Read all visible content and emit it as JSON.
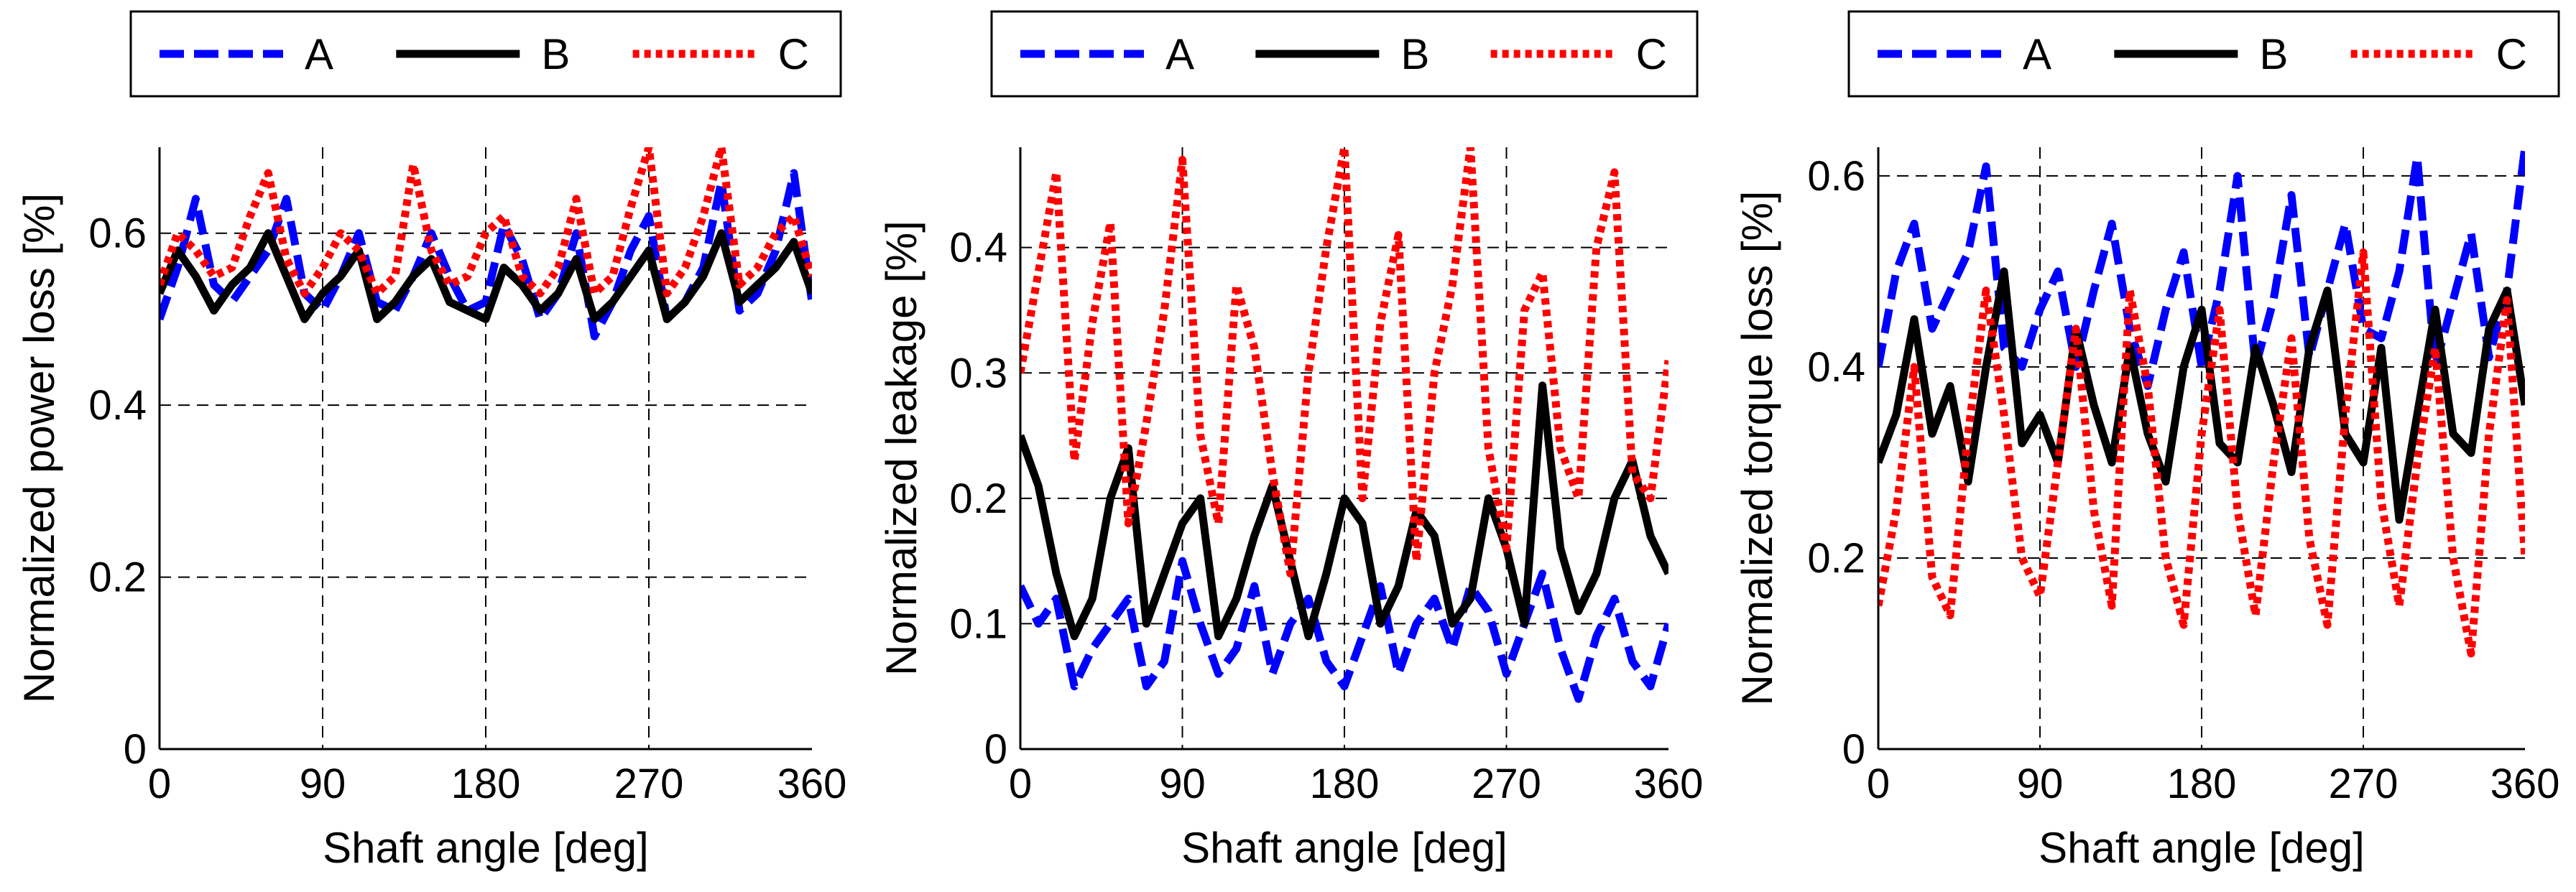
{
  "colors": {
    "A": "#0000ff",
    "B": "#000000",
    "C": "#ff0000",
    "grid": "#000000",
    "background": "#ffffff"
  },
  "chart_data": [
    {
      "type": "line",
      "title": "",
      "xlabel": "Shaft angle [deg]",
      "ylabel": "Normalized power loss [%]",
      "xlim": [
        0,
        360
      ],
      "ylim": [
        0,
        0.7
      ],
      "xticks": [
        0,
        90,
        180,
        270,
        360
      ],
      "xtick_labels": [
        "0",
        "90",
        "180",
        "270",
        "360"
      ],
      "yticks": [
        0,
        0.2,
        0.4,
        0.6
      ],
      "ytick_labels": [
        "0",
        "0.2",
        "0.4",
        "0.6"
      ],
      "grid": true,
      "legend_position": "top",
      "x": [
        0,
        10,
        20,
        30,
        40,
        50,
        60,
        70,
        80,
        90,
        100,
        110,
        120,
        130,
        140,
        150,
        160,
        170,
        180,
        190,
        200,
        210,
        220,
        230,
        240,
        250,
        260,
        270,
        280,
        290,
        300,
        310,
        320,
        330,
        340,
        350,
        360
      ],
      "series": [
        {
          "name": "A",
          "style": "dashed",
          "values": [
            0.5,
            0.56,
            0.64,
            0.54,
            0.52,
            0.55,
            0.58,
            0.64,
            0.53,
            0.51,
            0.55,
            0.6,
            0.52,
            0.51,
            0.55,
            0.6,
            0.55,
            0.51,
            0.52,
            0.61,
            0.57,
            0.5,
            0.53,
            0.6,
            0.48,
            0.52,
            0.58,
            0.62,
            0.5,
            0.52,
            0.56,
            0.66,
            0.51,
            0.53,
            0.58,
            0.67,
            0.52
          ]
        },
        {
          "name": "B",
          "style": "solid",
          "values": [
            0.53,
            0.58,
            0.55,
            0.51,
            0.54,
            0.56,
            0.6,
            0.55,
            0.5,
            0.53,
            0.55,
            0.58,
            0.5,
            0.52,
            0.55,
            0.57,
            0.52,
            0.51,
            0.5,
            0.56,
            0.54,
            0.51,
            0.53,
            0.57,
            0.5,
            0.52,
            0.55,
            0.58,
            0.5,
            0.52,
            0.55,
            0.6,
            0.52,
            0.54,
            0.56,
            0.59,
            0.53
          ]
        },
        {
          "name": "C",
          "style": "dotted",
          "values": [
            0.54,
            0.6,
            0.58,
            0.55,
            0.56,
            0.62,
            0.67,
            0.57,
            0.53,
            0.56,
            0.6,
            0.58,
            0.53,
            0.55,
            0.68,
            0.58,
            0.54,
            0.55,
            0.6,
            0.62,
            0.55,
            0.53,
            0.56,
            0.64,
            0.53,
            0.55,
            0.63,
            0.7,
            0.53,
            0.56,
            0.62,
            0.7,
            0.54,
            0.56,
            0.6,
            0.62,
            0.55
          ]
        }
      ]
    },
    {
      "type": "line",
      "title": "",
      "xlabel": "Shaft angle [deg]",
      "ylabel": "Normalized leakage [%]",
      "xlim": [
        0,
        360
      ],
      "ylim": [
        0,
        0.48
      ],
      "xticks": [
        0,
        90,
        180,
        270,
        360
      ],
      "xtick_labels": [
        "0",
        "90",
        "180",
        "270",
        "360"
      ],
      "yticks": [
        0,
        0.1,
        0.2,
        0.3,
        0.4
      ],
      "ytick_labels": [
        "0",
        "0.1",
        "0.2",
        "0.3",
        "0.4"
      ],
      "grid": true,
      "legend_position": "top",
      "x": [
        0,
        10,
        20,
        30,
        40,
        50,
        60,
        70,
        80,
        90,
        100,
        110,
        120,
        130,
        140,
        150,
        160,
        170,
        180,
        190,
        200,
        210,
        220,
        230,
        240,
        250,
        260,
        270,
        280,
        290,
        300,
        310,
        320,
        330,
        340,
        350,
        360
      ],
      "series": [
        {
          "name": "A",
          "style": "dashed",
          "values": [
            0.13,
            0.1,
            0.12,
            0.05,
            0.08,
            0.1,
            0.12,
            0.05,
            0.07,
            0.15,
            0.1,
            0.06,
            0.08,
            0.13,
            0.06,
            0.1,
            0.12,
            0.07,
            0.05,
            0.09,
            0.13,
            0.06,
            0.1,
            0.12,
            0.08,
            0.13,
            0.11,
            0.06,
            0.1,
            0.14,
            0.08,
            0.04,
            0.09,
            0.12,
            0.07,
            0.05,
            0.1
          ]
        },
        {
          "name": "B",
          "style": "solid",
          "values": [
            0.25,
            0.21,
            0.14,
            0.09,
            0.12,
            0.2,
            0.24,
            0.1,
            0.14,
            0.18,
            0.2,
            0.09,
            0.12,
            0.17,
            0.21,
            0.15,
            0.09,
            0.14,
            0.2,
            0.18,
            0.1,
            0.13,
            0.19,
            0.17,
            0.1,
            0.12,
            0.2,
            0.16,
            0.1,
            0.29,
            0.16,
            0.11,
            0.14,
            0.2,
            0.23,
            0.17,
            0.14
          ]
        },
        {
          "name": "C",
          "style": "dotted",
          "values": [
            0.3,
            0.38,
            0.46,
            0.23,
            0.34,
            0.42,
            0.18,
            0.26,
            0.35,
            0.47,
            0.25,
            0.18,
            0.37,
            0.32,
            0.22,
            0.14,
            0.3,
            0.4,
            0.48,
            0.2,
            0.34,
            0.41,
            0.15,
            0.3,
            0.37,
            0.48,
            0.24,
            0.16,
            0.35,
            0.38,
            0.24,
            0.2,
            0.4,
            0.46,
            0.22,
            0.2,
            0.31
          ]
        }
      ]
    },
    {
      "type": "line",
      "title": "",
      "xlabel": "Shaft angle [deg]",
      "ylabel": "Normalized torque loss [%]",
      "xlim": [
        0,
        360
      ],
      "ylim": [
        0,
        0.63
      ],
      "xticks": [
        0,
        90,
        180,
        270,
        360
      ],
      "xtick_labels": [
        "0",
        "90",
        "180",
        "270",
        "360"
      ],
      "yticks": [
        0,
        0.2,
        0.4,
        0.6
      ],
      "ytick_labels": [
        "0",
        "0.2",
        "0.4",
        "0.6"
      ],
      "grid": true,
      "legend_position": "top",
      "x": [
        0,
        10,
        20,
        30,
        40,
        50,
        60,
        70,
        80,
        90,
        100,
        110,
        120,
        130,
        140,
        150,
        160,
        170,
        180,
        190,
        200,
        210,
        220,
        230,
        240,
        250,
        260,
        270,
        280,
        290,
        300,
        310,
        320,
        330,
        340,
        350,
        360
      ],
      "series": [
        {
          "name": "A",
          "style": "dashed",
          "values": [
            0.4,
            0.5,
            0.55,
            0.44,
            0.48,
            0.52,
            0.61,
            0.42,
            0.4,
            0.46,
            0.5,
            0.4,
            0.48,
            0.55,
            0.44,
            0.38,
            0.46,
            0.52,
            0.4,
            0.48,
            0.6,
            0.4,
            0.47,
            0.58,
            0.41,
            0.48,
            0.55,
            0.44,
            0.43,
            0.5,
            0.62,
            0.4,
            0.47,
            0.54,
            0.41,
            0.48,
            0.63
          ]
        },
        {
          "name": "B",
          "style": "solid",
          "values": [
            0.3,
            0.35,
            0.45,
            0.33,
            0.38,
            0.28,
            0.4,
            0.5,
            0.32,
            0.35,
            0.3,
            0.44,
            0.36,
            0.3,
            0.42,
            0.33,
            0.28,
            0.4,
            0.46,
            0.32,
            0.3,
            0.42,
            0.36,
            0.29,
            0.42,
            0.48,
            0.33,
            0.3,
            0.42,
            0.24,
            0.35,
            0.46,
            0.33,
            0.31,
            0.44,
            0.48,
            0.36
          ]
        },
        {
          "name": "C",
          "style": "dotted",
          "values": [
            0.15,
            0.25,
            0.4,
            0.18,
            0.14,
            0.33,
            0.48,
            0.35,
            0.2,
            0.16,
            0.3,
            0.44,
            0.25,
            0.15,
            0.48,
            0.38,
            0.2,
            0.13,
            0.33,
            0.46,
            0.25,
            0.14,
            0.3,
            0.43,
            0.22,
            0.13,
            0.35,
            0.52,
            0.26,
            0.15,
            0.3,
            0.42,
            0.2,
            0.1,
            0.33,
            0.47,
            0.2
          ]
        }
      ]
    }
  ]
}
